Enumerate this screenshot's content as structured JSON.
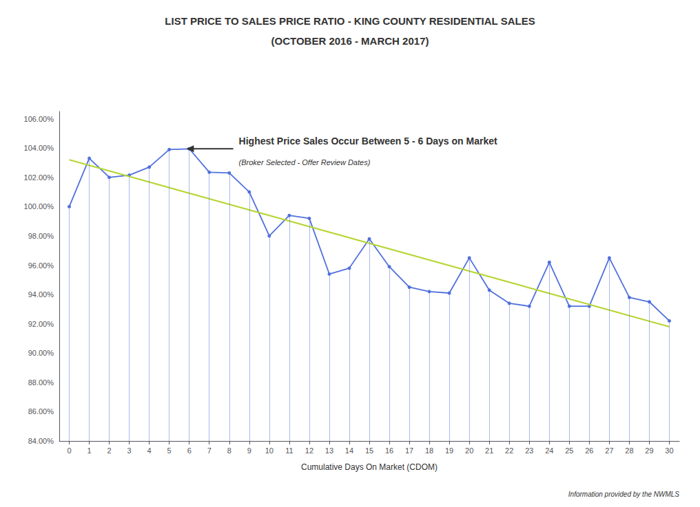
{
  "chart_data": {
    "type": "line",
    "title": "LIST PRICE TO SALES PRICE RATIO - KING COUNTY RESIDENTIAL SALES",
    "subtitle": "(OCTOBER 2016 - MARCH 2017)",
    "xlabel": "Cumulative Days On Market (CDOM)",
    "x": [
      0,
      1,
      2,
      3,
      4,
      5,
      6,
      7,
      8,
      9,
      10,
      11,
      12,
      13,
      14,
      15,
      16,
      17,
      18,
      19,
      20,
      21,
      22,
      23,
      24,
      25,
      26,
      27,
      28,
      29,
      30
    ],
    "series": [
      {
        "type": "line",
        "marker": "circle",
        "values": [
          100.0,
          103.3,
          102.0,
          102.15,
          102.7,
          103.9,
          103.95,
          102.35,
          102.3,
          101.0,
          98.0,
          99.4,
          99.2,
          95.4,
          95.8,
          97.8,
          95.9,
          94.5,
          94.2,
          94.1,
          96.5,
          94.3,
          93.4,
          93.2,
          96.2,
          93.2,
          93.2,
          96.5,
          93.8,
          93.5,
          92.2
        ]
      },
      {
        "type": "line",
        "x": [
          0,
          30
        ],
        "values": [
          103.2,
          91.8
        ]
      }
    ],
    "xlim": [
      -0.5,
      30.5
    ],
    "xticks": [
      0,
      1,
      2,
      3,
      4,
      5,
      6,
      7,
      8,
      9,
      10,
      11,
      12,
      13,
      14,
      15,
      16,
      17,
      18,
      19,
      20,
      21,
      22,
      23,
      24,
      25,
      26,
      27,
      28,
      29,
      30
    ],
    "ylim": [
      84.0,
      106.5
    ],
    "yticks": [
      {
        "value": 84.0,
        "label": "84.00%"
      },
      {
        "value": 86.0,
        "label": "86.00%"
      },
      {
        "value": 88.0,
        "label": "88.00%"
      },
      {
        "value": 90.0,
        "label": "90.00%"
      },
      {
        "value": 92.0,
        "label": "92.00%"
      },
      {
        "value": 94.0,
        "label": "94.00%"
      },
      {
        "value": 96.0,
        "label": "96.00%"
      },
      {
        "value": 98.0,
        "label": "98.00%"
      },
      {
        "value": 100.0,
        "label": "100.00%"
      },
      {
        "value": 102.0,
        "label": "102.00%"
      },
      {
        "value": 104.0,
        "label": "104.00%"
      },
      {
        "value": 106.0,
        "label": "106.00%"
      }
    ],
    "grid": false,
    "annotations": [
      {
        "text": "Highest Price Sales Occur Between 5 - 6 Days on Market",
        "x": 8.2,
        "y": 103.95,
        "arrow_x": 5.85
      },
      {
        "text": "(Broker Selected - Offer Review Dates)",
        "x": 8.2,
        "y": 103.95
      },
      {
        "text": "Information provided by the NWMLS"
      }
    ]
  }
}
